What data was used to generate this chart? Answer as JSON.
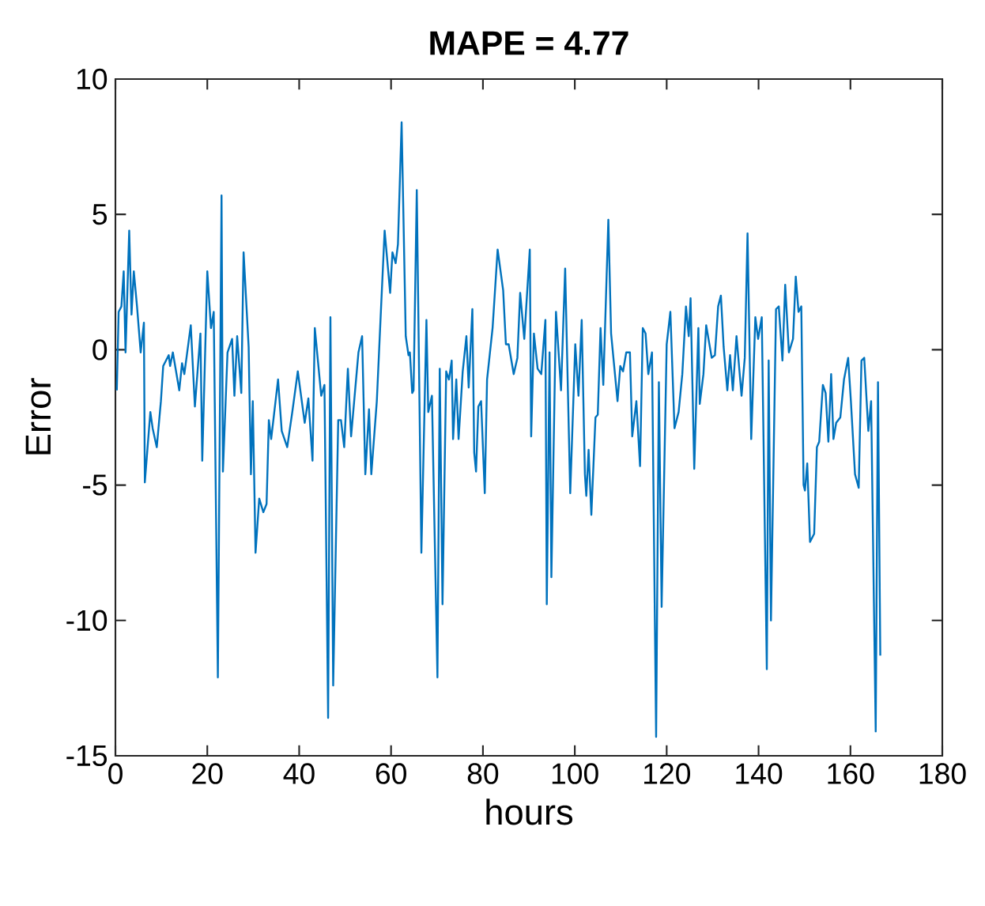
{
  "chart_data": {
    "type": "line",
    "title": "MAPE = 4.77",
    "xlabel": "hours",
    "ylabel": "Error",
    "xlim": [
      0,
      180
    ],
    "xticks": [
      0,
      20,
      40,
      60,
      80,
      100,
      120,
      140,
      160,
      180
    ],
    "ylim": [
      -15,
      10
    ],
    "yticks": [
      -15,
      -10,
      -5,
      0,
      5,
      10
    ],
    "grid": false,
    "series": [
      {
        "color": "#0072bd",
        "x": [
          0.3,
          0.7,
          1.3,
          1.8,
          2.2,
          3.0,
          3.5,
          4.0,
          4.7,
          5.5,
          6.2,
          6.4,
          7.6,
          8.1,
          9.0,
          9.9,
          10.4,
          11.6,
          11.9,
          12.5,
          13.9,
          14.5,
          15.0,
          16.4,
          17.3,
          18.5,
          18.9,
          20.0,
          20.8,
          21.4,
          22.3,
          23.1,
          23.4,
          24.4,
          25.4,
          25.9,
          26.5,
          27.4,
          27.9,
          29.0,
          29.5,
          29.9,
          30.5,
          31.3,
          32.2,
          32.9,
          33.4,
          33.9,
          35.4,
          36.2,
          37.4,
          38.5,
          39.7,
          41.2,
          42.0,
          42.9,
          43.4,
          44.8,
          45.5,
          46.3,
          46.8,
          47.4,
          48.5,
          49.1,
          49.8,
          50.6,
          51.3,
          52.9,
          53.7,
          54.4,
          55.2,
          55.7,
          56.9,
          57.7,
          58.6,
          59.8,
          60.3,
          61.0,
          61.5,
          62.3,
          63.2,
          63.8,
          64.1,
          64.6,
          64.9,
          65.6,
          66.6,
          67.7,
          68.1,
          68.9,
          70.1,
          70.6,
          71.2,
          72.0,
          72.6,
          73.2,
          73.5,
          74.2,
          74.7,
          75.6,
          76.4,
          76.9,
          77.7,
          78.1,
          78.5,
          79.0,
          79.6,
          80.4,
          80.9,
          82.1,
          83.2,
          84.4,
          85.0,
          85.6,
          86.7,
          87.5,
          88.1,
          89.0,
          90.2,
          90.5,
          91.1,
          91.9,
          92.7,
          93.6,
          93.9,
          94.5,
          94.9,
          95.9,
          97.0,
          97.9,
          99.0,
          100.1,
          100.8,
          101.5,
          102.2,
          102.5,
          103.0,
          103.6,
          104.5,
          105.0,
          105.6,
          106.2,
          107.3,
          107.9,
          109.3,
          109.9,
          110.5,
          111.2,
          112.0,
          112.5,
          113.4,
          114.2,
          114.8,
          115.4,
          116.0,
          116.8,
          117.7,
          118.3,
          118.9,
          120.0,
          120.8,
          121.7,
          122.6,
          123.4,
          124.2,
          124.8,
          125.2,
          126.0,
          126.9,
          127.2,
          128.0,
          128.6,
          129.8,
          130.5,
          131.2,
          131.8,
          132.4,
          133.2,
          133.8,
          134.4,
          135.2,
          136.3,
          137.0,
          137.6,
          138.4,
          139.3,
          139.9,
          140.7,
          141.8,
          142.2,
          142.7,
          143.8,
          144.4,
          145.2,
          145.8,
          146.6,
          147.5,
          148.1,
          148.7,
          149.3,
          149.8,
          150.1,
          150.6,
          151.2,
          152.1,
          152.7,
          153.2,
          154.0,
          154.6,
          155.2,
          155.8,
          156.3,
          156.9,
          157.8,
          158.6,
          159.5,
          160.1,
          161.0,
          161.8,
          162.4,
          163.0,
          163.9,
          164.5,
          165.5,
          166.0,
          166.5
        ],
        "values": [
          -1.5,
          1.4,
          1.6,
          2.9,
          -0.1,
          4.4,
          1.3,
          2.9,
          1.6,
          -0.1,
          1.0,
          -4.9,
          -2.3,
          -2.9,
          -3.6,
          -1.9,
          -0.6,
          -0.2,
          -0.6,
          -0.1,
          -1.5,
          -0.5,
          -0.9,
          0.9,
          -2.1,
          0.6,
          -4.1,
          2.9,
          0.8,
          1.4,
          -12.1,
          5.7,
          -4.5,
          -0.1,
          0.4,
          -1.7,
          0.5,
          -1.6,
          3.6,
          0.1,
          -4.6,
          -1.9,
          -7.5,
          -5.5,
          -6.0,
          -5.7,
          -2.6,
          -3.3,
          -1.1,
          -3.0,
          -3.6,
          -2.3,
          -0.8,
          -2.7,
          -1.8,
          -4.1,
          0.8,
          -1.7,
          -1.3,
          -13.6,
          1.2,
          -12.4,
          -2.6,
          -2.6,
          -3.6,
          -0.7,
          -3.2,
          -0.1,
          0.5,
          -4.6,
          -2.2,
          -4.6,
          -1.9,
          1.1,
          4.4,
          2.1,
          3.6,
          3.2,
          3.9,
          8.4,
          0.5,
          -0.2,
          -0.1,
          -1.6,
          -1.5,
          5.9,
          -7.5,
          1.1,
          -2.3,
          -1.7,
          -12.1,
          -0.7,
          -9.4,
          -0.8,
          -1.1,
          -0.4,
          -3.3,
          -1.1,
          -3.3,
          -0.8,
          0.5,
          -1.4,
          1.5,
          -3.8,
          -4.5,
          -2.1,
          -1.9,
          -5.3,
          -1.1,
          0.8,
          3.7,
          2.2,
          0.2,
          0.2,
          -0.9,
          -0.3,
          2.1,
          0.4,
          3.7,
          -3.2,
          0.6,
          -0.7,
          -0.9,
          1.1,
          -9.4,
          -0.1,
          -8.4,
          1.4,
          -1.5,
          3.0,
          -5.3,
          0.2,
          -1.7,
          1.1,
          -4.6,
          -5.4,
          -3.7,
          -6.1,
          -2.5,
          -2.4,
          0.8,
          -1.3,
          4.8,
          0.6,
          -1.9,
          -0.6,
          -0.8,
          -0.1,
          -0.1,
          -3.2,
          -1.9,
          -4.3,
          0.8,
          0.6,
          -0.9,
          -0.1,
          -14.3,
          -1.2,
          -9.5,
          0.2,
          1.4,
          -2.9,
          -2.3,
          -0.9,
          1.6,
          0.5,
          1.9,
          -4.4,
          0.8,
          -2.0,
          -0.9,
          0.9,
          -0.3,
          -0.2,
          1.6,
          2.0,
          0.1,
          -1.5,
          -0.2,
          -1.5,
          0.5,
          -1.7,
          -0.3,
          4.3,
          -3.3,
          1.2,
          0.4,
          1.2,
          -11.8,
          -0.4,
          -10.0,
          1.5,
          1.6,
          -0.4,
          2.4,
          -0.1,
          0.4,
          2.7,
          1.4,
          1.6,
          -5.0,
          -5.2,
          -4.2,
          -7.1,
          -6.8,
          -3.6,
          -3.4,
          -1.3,
          -1.6,
          -3.4,
          -0.9,
          -3.3,
          -2.7,
          -2.5,
          -1.1,
          -0.3,
          -1.9,
          -4.6,
          -5.1,
          -0.4,
          -0.3,
          -3.0,
          -1.9,
          -14.1,
          -1.2,
          -11.3
        ]
      }
    ]
  }
}
